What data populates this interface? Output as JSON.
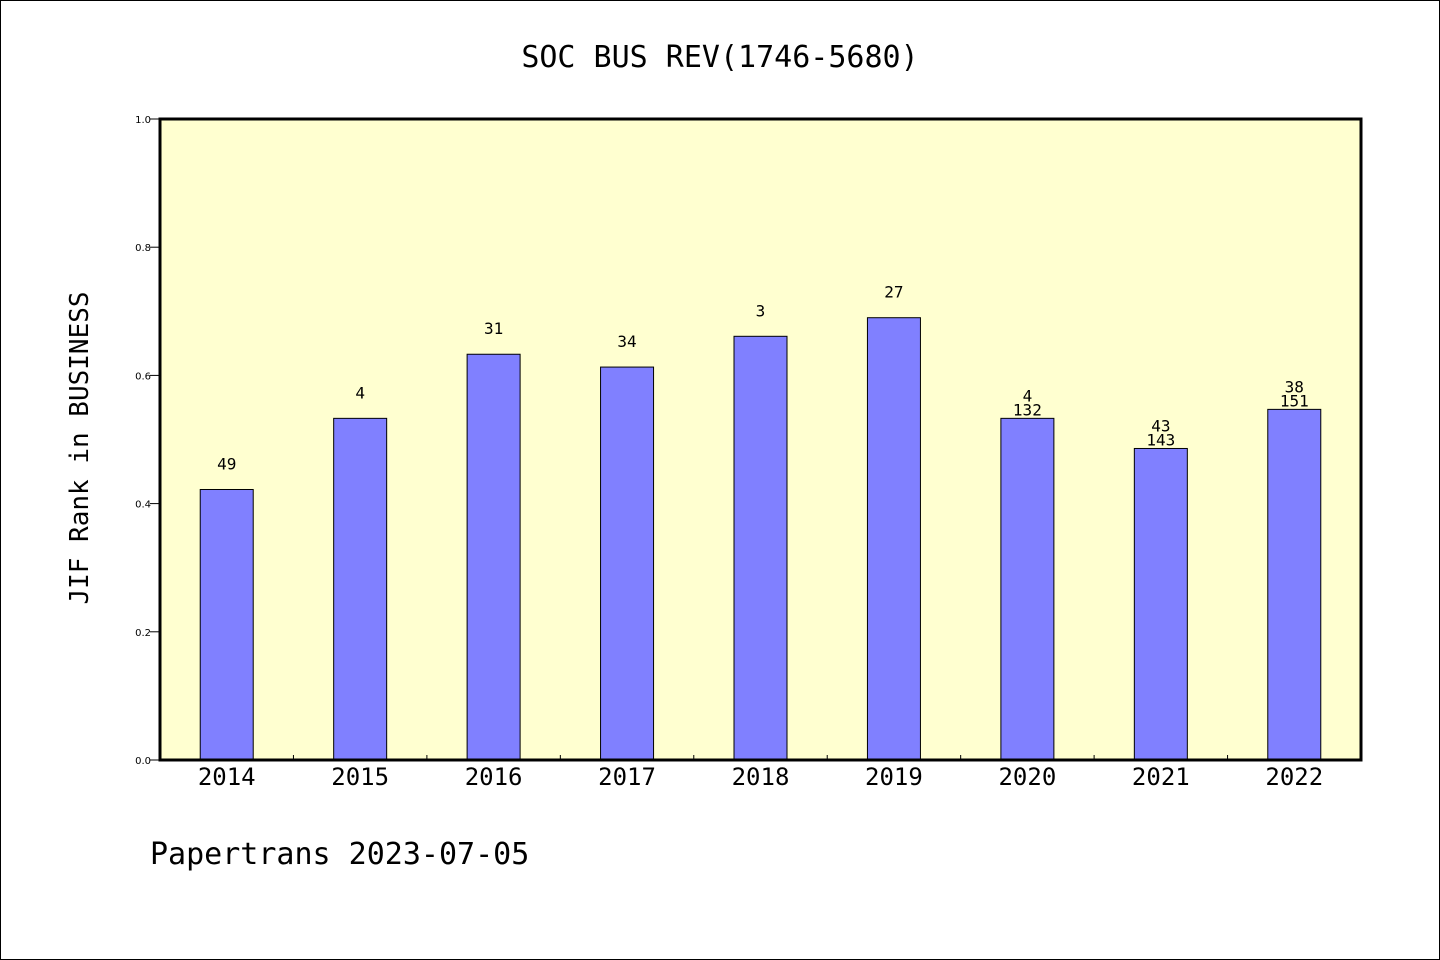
{
  "chart_data": {
    "type": "bar",
    "title": "SOC BUS REV(1746-5680)",
    "xlabel": "",
    "ylabel": "JIF Rank in BUSINESS",
    "ylim": [
      0,
      1.0
    ],
    "yticks": [
      "0.0",
      "0.2",
      "0.4",
      "0.6",
      "0.8",
      "1.0"
    ],
    "categories": [
      "2014",
      "2015",
      "2016",
      "2017",
      "2018",
      "2019",
      "2020",
      "2021",
      "2022"
    ],
    "values": [
      0.422,
      0.533,
      0.633,
      0.613,
      0.661,
      0.69,
      0.533,
      0.486,
      0.547
    ],
    "labels": [
      [
        "49"
      ],
      [
        "4"
      ],
      [
        "31"
      ],
      [
        "34"
      ],
      [
        "3"
      ],
      [
        "27"
      ],
      [
        "4",
        "132"
      ],
      [
        "43",
        "143"
      ],
      [
        "38",
        "151"
      ]
    ],
    "grid": false,
    "colors": {
      "bar": "#8080ff",
      "plot_background": "#ffffd0",
      "bar_edge": "#000000"
    }
  },
  "footer": "Papertrans 2023-07-05"
}
